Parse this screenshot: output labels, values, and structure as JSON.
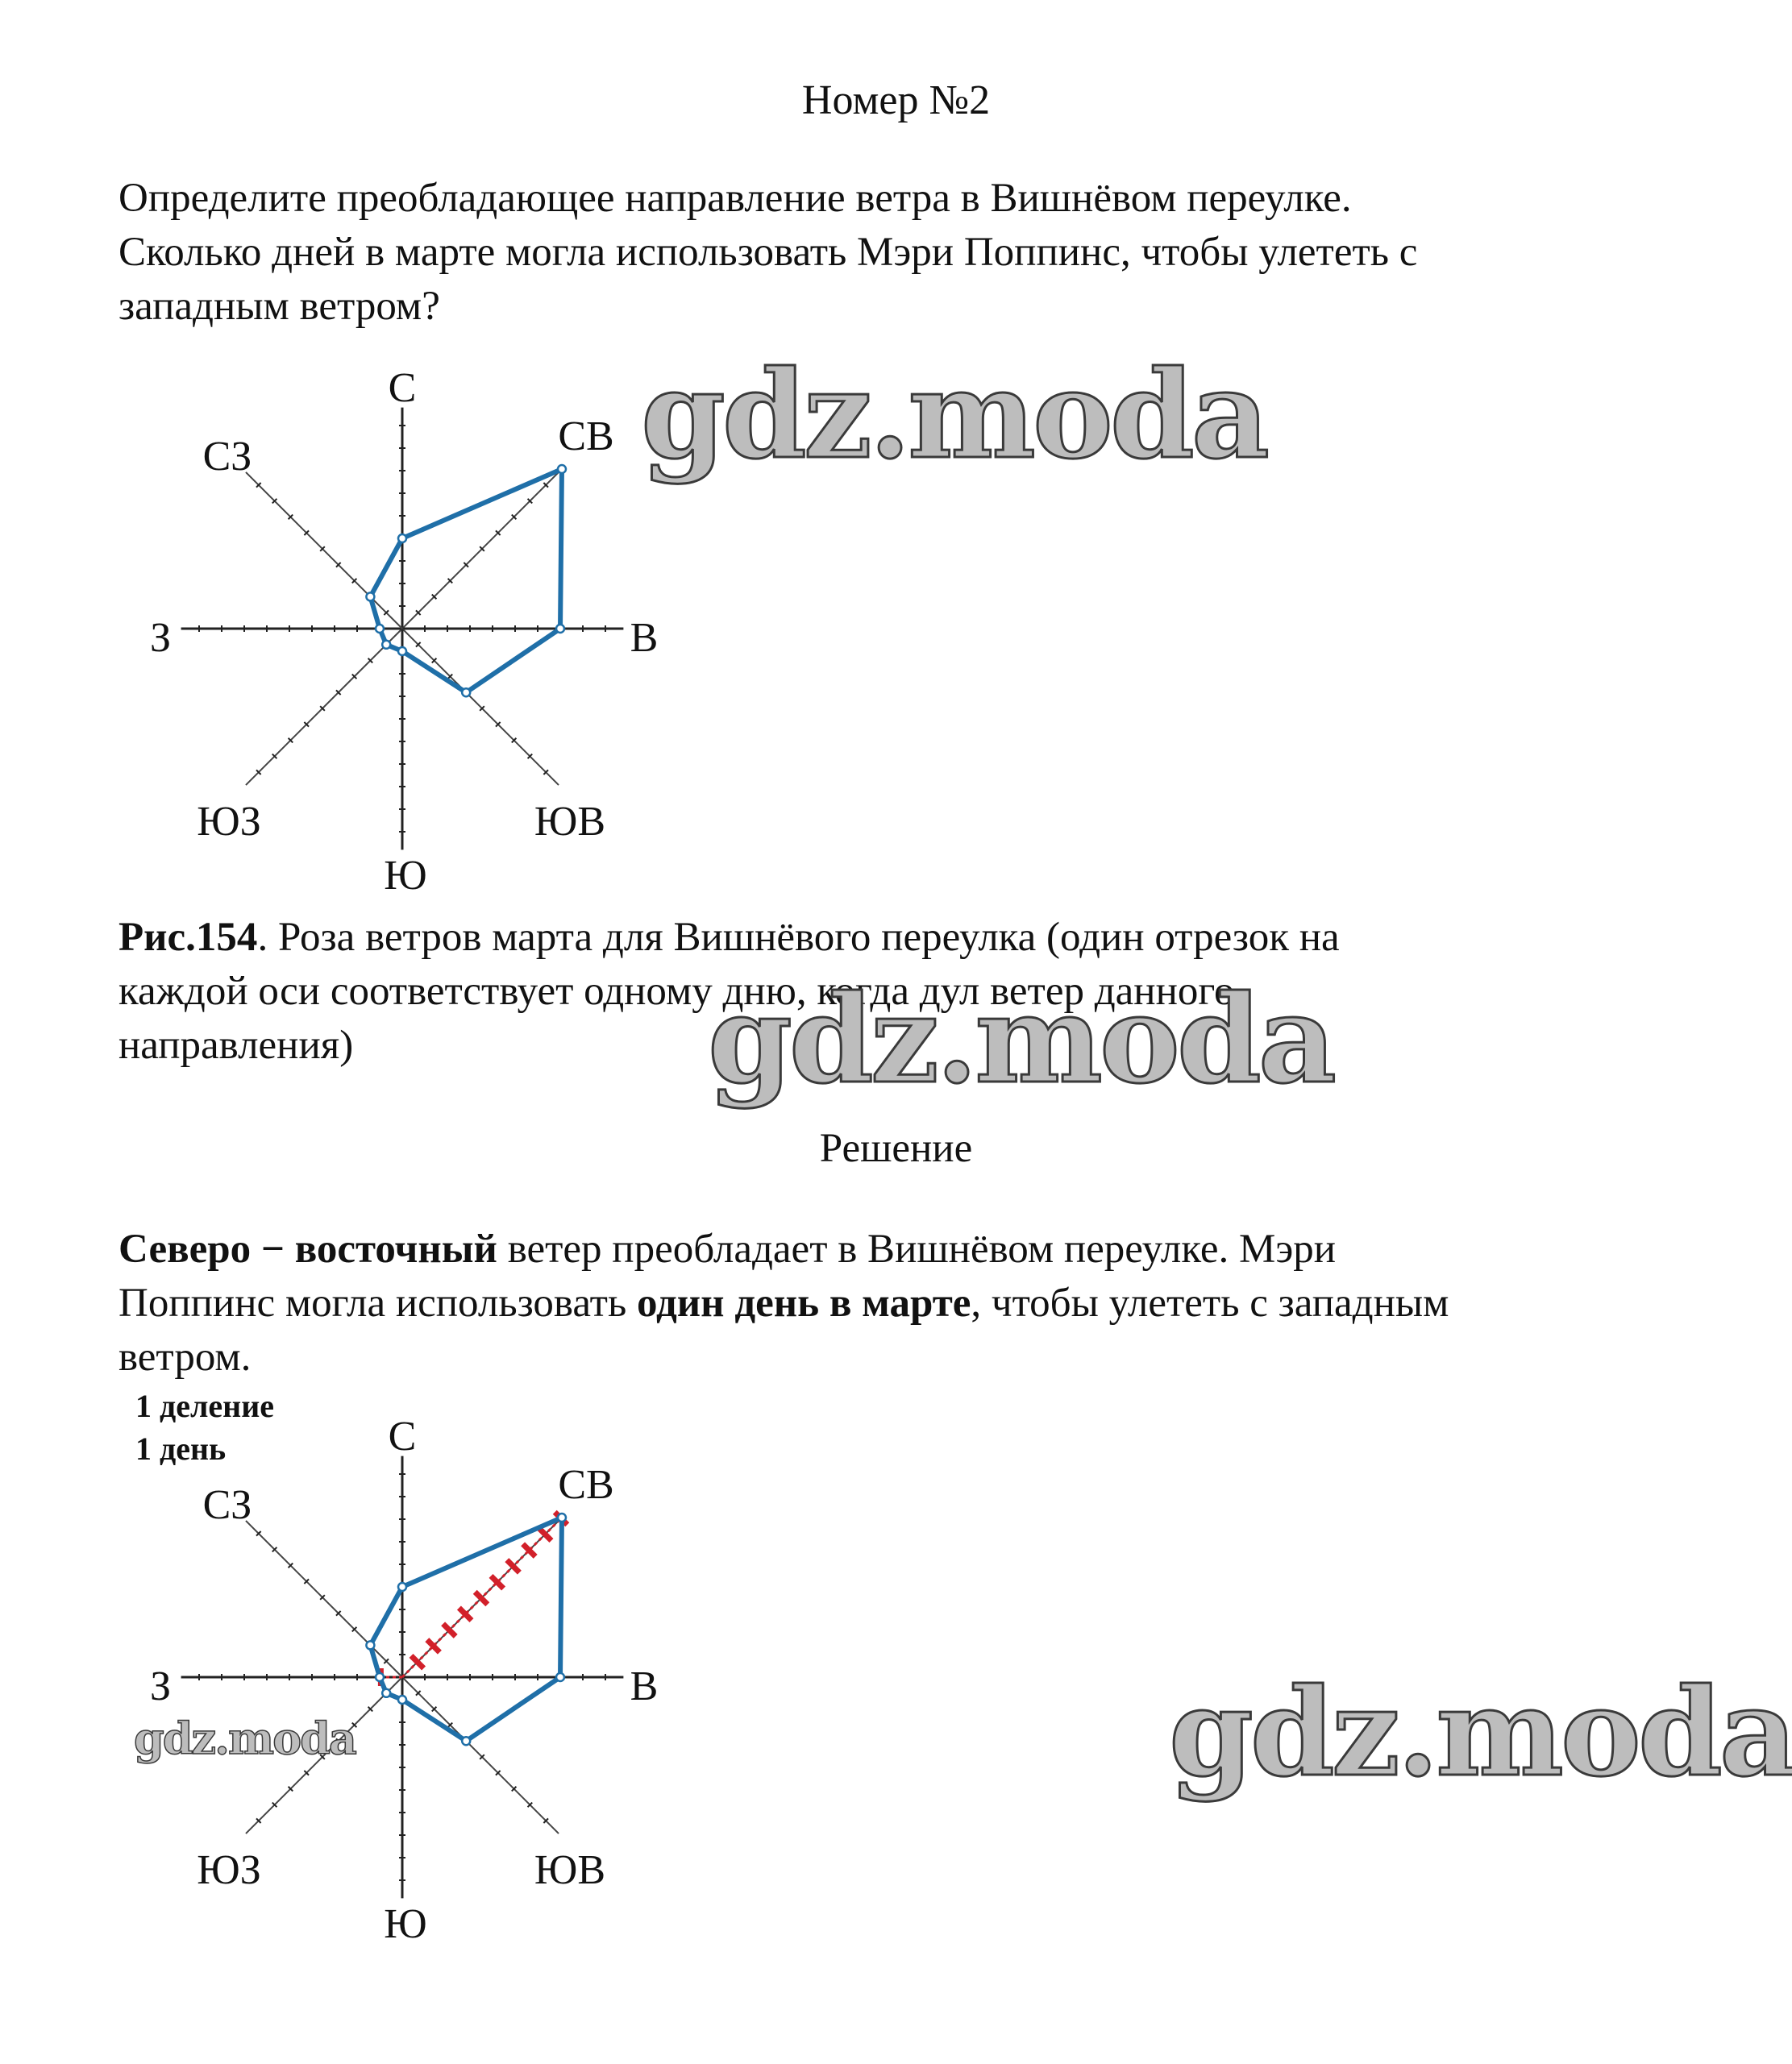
{
  "header": {
    "title": "Номер №2"
  },
  "question": {
    "lines": [
      "Определите преобладающее направление ветра в Вишнёвом переулке.",
      "Сколько дней в марте могла использовать Мэри Поппинс, чтобы улететь с",
      "западным ветром?"
    ]
  },
  "figure": {
    "caption_label": "Рис.154",
    "caption_lines": [
      ". Роза ветров марта для Вишнёвого переулка (один отрезок на",
      "каждой оси соответствует одному дню, когда дул ветер данного",
      "направления)"
    ]
  },
  "solution": {
    "heading": "Решение",
    "line1_bold": "Северо − восточный",
    "line1_rest": " ветер преобладает в Вишнёвом переулке. Мэри",
    "line2_start": "Поппинс могла использовать ",
    "line2_bold": "один день в марте",
    "line2_rest": ", чтобы улететь с западным",
    "line3": "ветром.",
    "legend_line1": "1 деление",
    "legend_line2": "1 день"
  },
  "watermarks": [
    "gdz.moda",
    "gdz.moda",
    "gdz.moda",
    "gdz.moda"
  ],
  "colors": {
    "polygon": "#1f6fa8",
    "highlight": "#d2202a",
    "axis": "#222222"
  },
  "chart_data": {
    "type": "radar",
    "title": "",
    "directions": [
      "С",
      "СВ",
      "В",
      "ЮВ",
      "Ю",
      "ЮЗ",
      "З",
      "СЗ"
    ],
    "values": [
      4,
      10,
      7,
      4,
      1,
      1,
      1,
      2
    ],
    "axis_max": 10,
    "highlight_in_solution": {
      "СВ": 10,
      "З": 1
    }
  }
}
